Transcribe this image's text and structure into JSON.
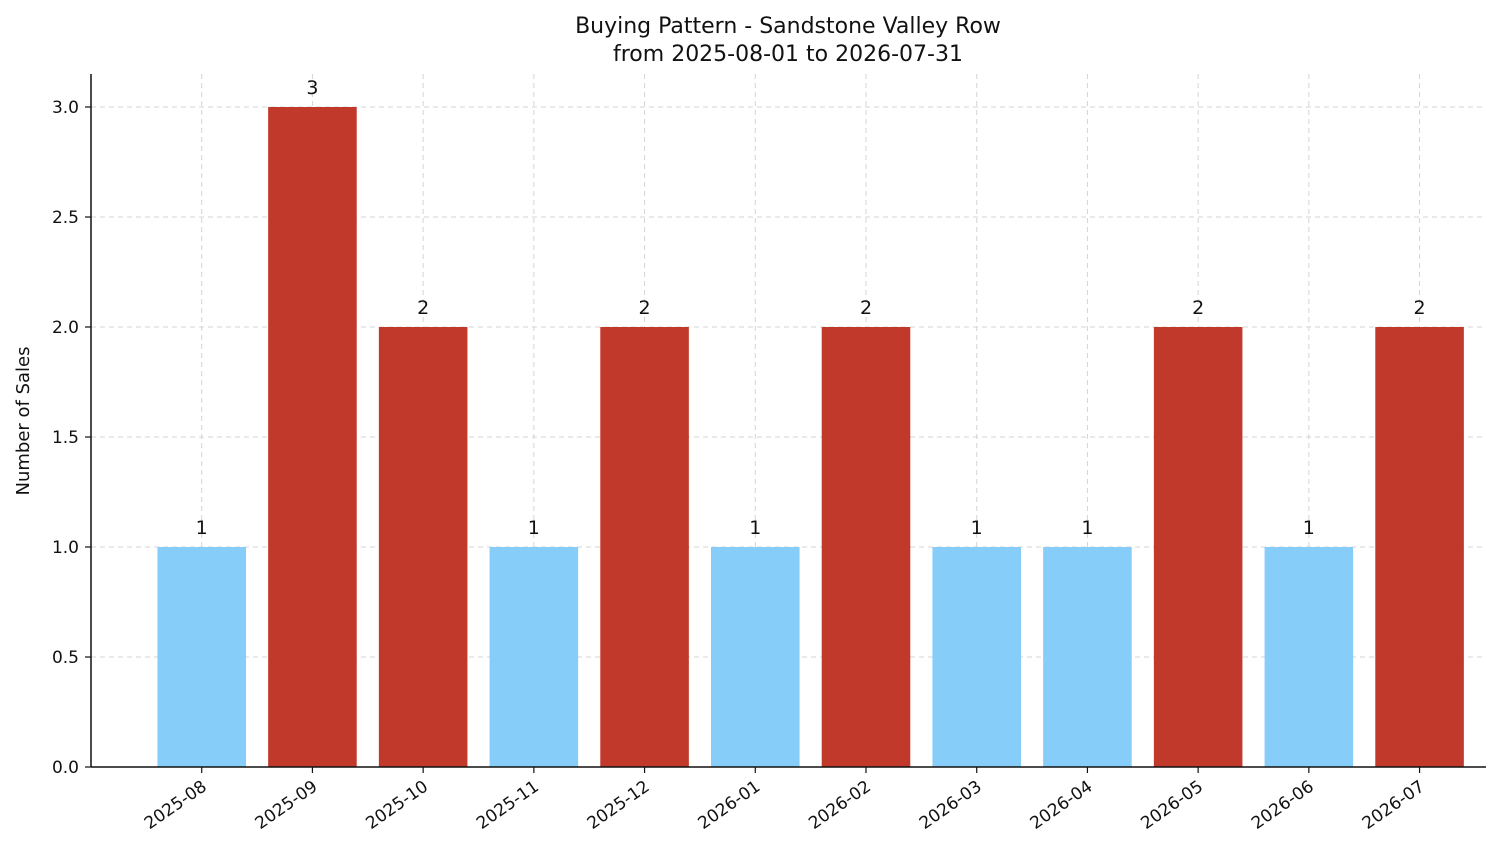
{
  "chart_data": {
    "type": "bar",
    "title": "Buying Pattern - Sandstone Valley Row",
    "subtitle": "from 2025-08-01 to 2026-07-31",
    "xlabel": "",
    "ylabel": "Number of Sales",
    "ylim": [
      0,
      3.15
    ],
    "yticks": [
      "0.0",
      "0.5",
      "1.0",
      "1.5",
      "2.0",
      "2.5",
      "3.0"
    ],
    "grid": true,
    "categories": [
      "2025-08",
      "2025-09",
      "2025-10",
      "2025-11",
      "2025-12",
      "2026-01",
      "2026-02",
      "2026-03",
      "2026-04",
      "2026-05",
      "2026-06",
      "2026-07"
    ],
    "values": [
      1,
      3,
      2,
      1,
      2,
      1,
      2,
      1,
      1,
      2,
      1,
      2
    ],
    "data_labels": [
      "1",
      "3",
      "2",
      "1",
      "2",
      "1",
      "2",
      "1",
      "1",
      "2",
      "1",
      "2"
    ],
    "colors": {
      "low": "#87cdf9",
      "high": "#c0392b",
      "high_threshold": 2
    }
  }
}
